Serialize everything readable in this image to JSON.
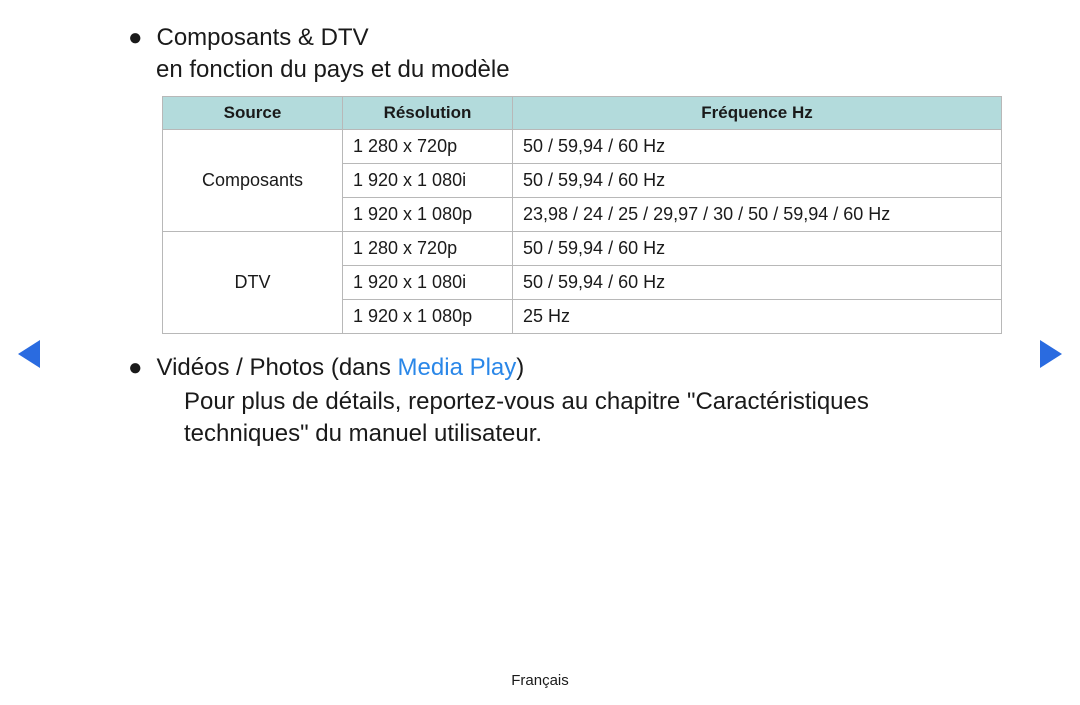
{
  "section1": {
    "title": "Composants & DTV",
    "subtitle": "en fonction du pays et du modèle"
  },
  "table": {
    "header_bg": "#b3dbdc",
    "border_color": "#b8b8b8",
    "columns": {
      "source": "Source",
      "resolution": "Résolution",
      "frequency": "Fréquence Hz"
    },
    "groups": [
      {
        "source": "Composants",
        "rows": [
          {
            "resolution": "1 280 x 720p",
            "frequency": "50 / 59,94 / 60 Hz"
          },
          {
            "resolution": "1 920 x 1 080i",
            "frequency": "50 / 59,94 / 60 Hz"
          },
          {
            "resolution": "1 920 x 1 080p",
            "frequency": "23,98 / 24 / 25 / 29,97 / 30 / 50 / 59,94 / 60 Hz"
          }
        ]
      },
      {
        "source": "DTV",
        "rows": [
          {
            "resolution": "1 280 x 720p",
            "frequency": "50 / 59,94 / 60 Hz"
          },
          {
            "resolution": "1 920 x 1 080i",
            "frequency": "50 / 59,94 / 60 Hz"
          },
          {
            "resolution": "1 920 x 1 080p",
            "frequency": "25 Hz"
          }
        ]
      }
    ]
  },
  "section2": {
    "prefix": "Vidéos / Photos (dans ",
    "link": "Media Play",
    "suffix": ")",
    "body": "Pour plus de détails, reportez-vous au chapitre \"Caractéristiques techniques\" du manuel utilisateur."
  },
  "footer": {
    "language": "Français"
  },
  "style": {
    "link_color": "#2a87e8",
    "arrow_color": "#2a6be0",
    "text_color": "#1a1a1a",
    "background": "#ffffff"
  }
}
